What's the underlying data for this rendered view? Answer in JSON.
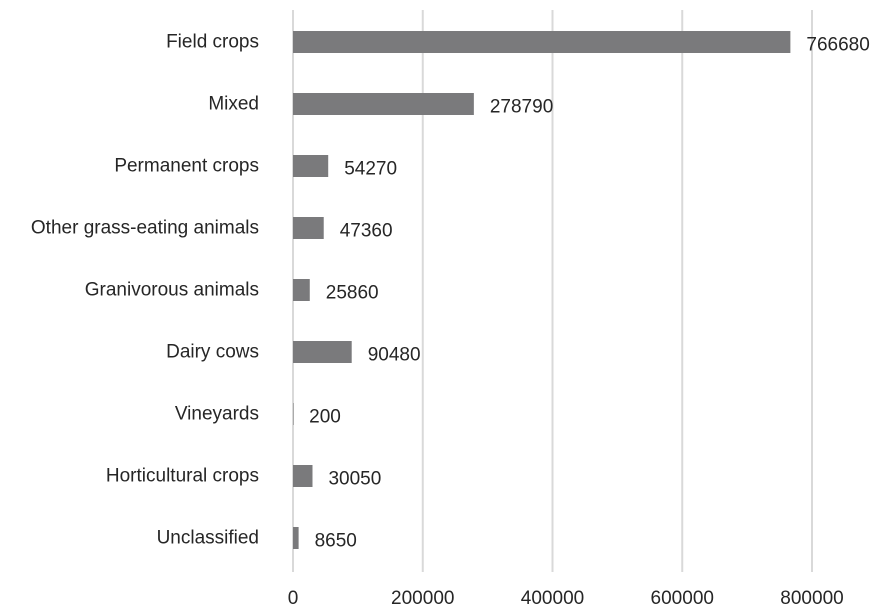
{
  "chart_data": {
    "type": "bar",
    "orientation": "horizontal",
    "title": "",
    "xlabel": "",
    "ylabel": "",
    "categories": [
      "Field crops",
      "Mixed",
      "Permanent crops",
      "Other grass-eating animals",
      "Granivorous animals",
      "Dairy cows",
      "Vineyards",
      "Horticultural crops",
      "Unclassified"
    ],
    "values": [
      766680,
      278790,
      54270,
      47360,
      25860,
      90480,
      200,
      30050,
      8650
    ],
    "value_labels": [
      "766680",
      "278790",
      "54270",
      "47360",
      "25860",
      "90480",
      "200",
      "30050",
      "8650"
    ],
    "xlim": [
      0,
      800000
    ],
    "ticks": [
      0,
      200000,
      400000,
      600000,
      800000
    ],
    "tick_labels": [
      "0",
      "200000",
      "400000",
      "600000",
      "800000"
    ],
    "grid": true,
    "legend": "none",
    "bar_color": "#7a7a7c",
    "grid_color": "#d9d9d9"
  }
}
